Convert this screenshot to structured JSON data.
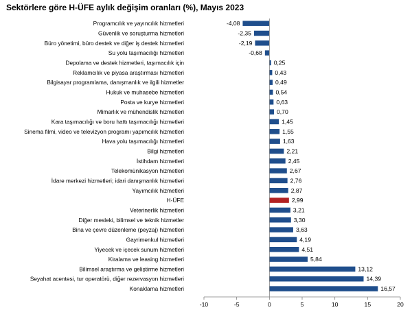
{
  "chart_data": {
    "type": "bar",
    "orientation": "horizontal",
    "title": "Sektörlere göre H-ÜFE aylık değişim oranları (%), Mayıs 2023",
    "xlim": [
      -10,
      20
    ],
    "xticks": [
      -10,
      -5,
      0,
      5,
      10,
      15,
      20
    ],
    "grid": false,
    "colors": {
      "bar": "#1f4e8c",
      "highlight": "#b22222"
    },
    "highlight_category": "H-ÜFE",
    "categories": [
      "Programcılık ve yayıncılık hizmetleri",
      "Güvenlik ve soruşturma hizmetleri",
      "Büro yönetimi, büro destek ve diğer iş destek hizmetleri",
      "Su yolu taşımacılığı hizmetleri",
      "Depolama ve destek hizmetleri, taşımacılık için",
      "Reklamcılık ve piyasa araştırması hizmetleri",
      "Bilgisayar programlama, danışmanlık ve ilgili hizmetler",
      "Hukuk ve muhasebe hizmetleri",
      "Posta ve kurye hizmetleri",
      "Mimarlık ve mühendislik hizmetleri",
      "Kara taşımacılığı ve boru hattı taşımacılığı hizmetleri",
      "Sinema filmi, video ve televizyon programı yapımcılık hizmetleri",
      "Hava yolu taşımacılığı hizmetleri",
      "Bilgi hizmetleri",
      "İstihdam hizmetleri",
      "Telekomünikasyon hizmetleri",
      "İdare merkezi hizmetleri; idari danışmanlık hizmetleri",
      "Yayımcılık hizmetleri",
      "H-ÜFE",
      "Veterinerlik hizmetleri",
      "Diğer mesleki, bilimsel ve teknik hizmetler",
      "Bina ve çevre düzenleme (peyzaj) hizmetleri",
      "Gayrimenkul hizmetleri",
      "Yiyecek ve içecek sunum hizmetleri",
      "Kiralama ve leasing hizmetleri",
      "Bilimsel araştırma ve geliştirme hizmetleri",
      "Seyahat acentesi, tur operatörü, diğer rezervasyon hizmetleri",
      "Konaklama hizmetleri"
    ],
    "values": [
      -4.08,
      -2.35,
      -2.19,
      -0.68,
      0.25,
      0.43,
      0.49,
      0.54,
      0.63,
      0.7,
      1.45,
      1.55,
      1.63,
      2.21,
      2.45,
      2.67,
      2.76,
      2.87,
      2.99,
      3.21,
      3.3,
      3.63,
      4.19,
      4.51,
      5.84,
      13.12,
      14.39,
      16.57
    ],
    "value_labels": [
      "-4,08",
      "-2,35",
      "-2,19",
      "-0,68",
      "0,25",
      "0,43",
      "0,49",
      "0,54",
      "0,63",
      "0,70",
      "1,45",
      "1,55",
      "1,63",
      "2,21",
      "2,45",
      "2,67",
      "2,76",
      "2,87",
      "2,99",
      "3,21",
      "3,30",
      "3,63",
      "4,19",
      "4,51",
      "5,84",
      "13,12",
      "14,39",
      "16,57"
    ]
  }
}
